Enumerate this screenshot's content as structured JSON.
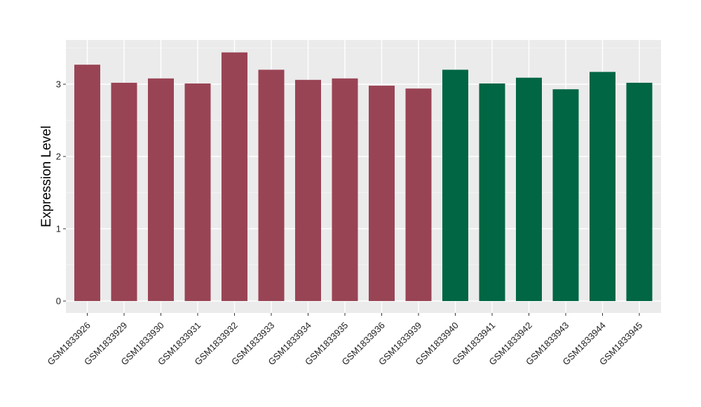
{
  "chart_data": {
    "type": "bar",
    "title": "",
    "xlabel": "",
    "ylabel": "Expression Level",
    "ylim": [
      0,
      3.6
    ],
    "yticks": [
      0,
      1,
      2,
      3
    ],
    "grid": true,
    "background_color": "#ebebeb",
    "categories": [
      "GSM1833926",
      "GSM1833929",
      "GSM1833930",
      "GSM1833931",
      "GSM1833932",
      "GSM1833933",
      "GSM1833934",
      "GSM1833935",
      "GSM1833936",
      "GSM1833939",
      "GSM1833940",
      "GSM1833941",
      "GSM1833942",
      "GSM1833943",
      "GSM1833944",
      "GSM1833945"
    ],
    "values": [
      3.27,
      3.02,
      3.08,
      3.01,
      3.44,
      3.2,
      3.06,
      3.08,
      2.98,
      2.94,
      3.2,
      3.01,
      3.09,
      2.93,
      3.17,
      3.02
    ],
    "colors": [
      "#994455",
      "#994455",
      "#994455",
      "#994455",
      "#994455",
      "#994455",
      "#994455",
      "#994455",
      "#994455",
      "#994455",
      "#006644",
      "#006644",
      "#006644",
      "#006644",
      "#006644",
      "#006644"
    ]
  }
}
